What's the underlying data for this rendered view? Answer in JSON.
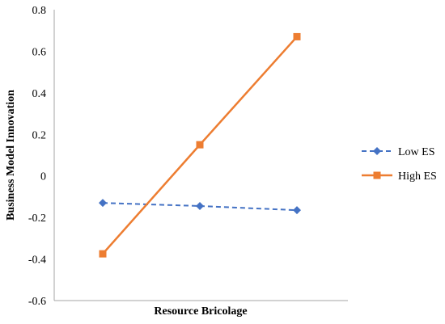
{
  "chart_data": {
    "type": "line",
    "title": "",
    "xlabel": "Resource Bricolage",
    "ylabel": "Business Model Innovation",
    "ylim": [
      -0.6,
      0.8
    ],
    "yticks": [
      "-0.6",
      "-0.4",
      "-0.2",
      "0",
      "0.2",
      "0.4",
      "0.6",
      "0.8"
    ],
    "x": [
      1,
      2,
      3
    ],
    "grid": false,
    "legend_position": "right",
    "series": [
      {
        "name": "Low ES",
        "color": "#4472C4",
        "marker": "diamond",
        "line_style": "dashed",
        "values": [
          -0.13,
          -0.145,
          -0.165
        ]
      },
      {
        "name": "High ES",
        "color": "#ED7D31",
        "marker": "square",
        "line_style": "solid",
        "values": [
          -0.375,
          0.15,
          0.67
        ]
      }
    ]
  }
}
